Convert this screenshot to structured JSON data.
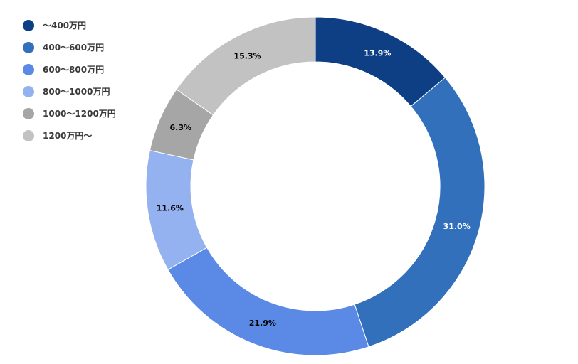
{
  "chart_data": {
    "type": "pie",
    "donut": true,
    "title": "",
    "legend_position": "left",
    "start_angle": "top, clockwise",
    "categories": [
      "〜400万円",
      "400〜600万円",
      "600〜800万円",
      "800〜1000万円",
      "1000〜1200万円",
      "1200万円〜"
    ],
    "values": [
      13.9,
      31.0,
      21.9,
      11.6,
      6.3,
      15.3
    ],
    "value_labels": [
      "13.9%",
      "31.0%",
      "21.9%",
      "11.6%",
      "6.3%",
      "15.3%"
    ],
    "colors": [
      "#0e3f84",
      "#3270bc",
      "#5b8ae6",
      "#95b2f0",
      "#a6a6a6",
      "#c2c2c2"
    ],
    "label_colors": [
      "#ffffff",
      "#ffffff",
      "#000000",
      "#000000",
      "#000000",
      "#000000"
    ]
  }
}
